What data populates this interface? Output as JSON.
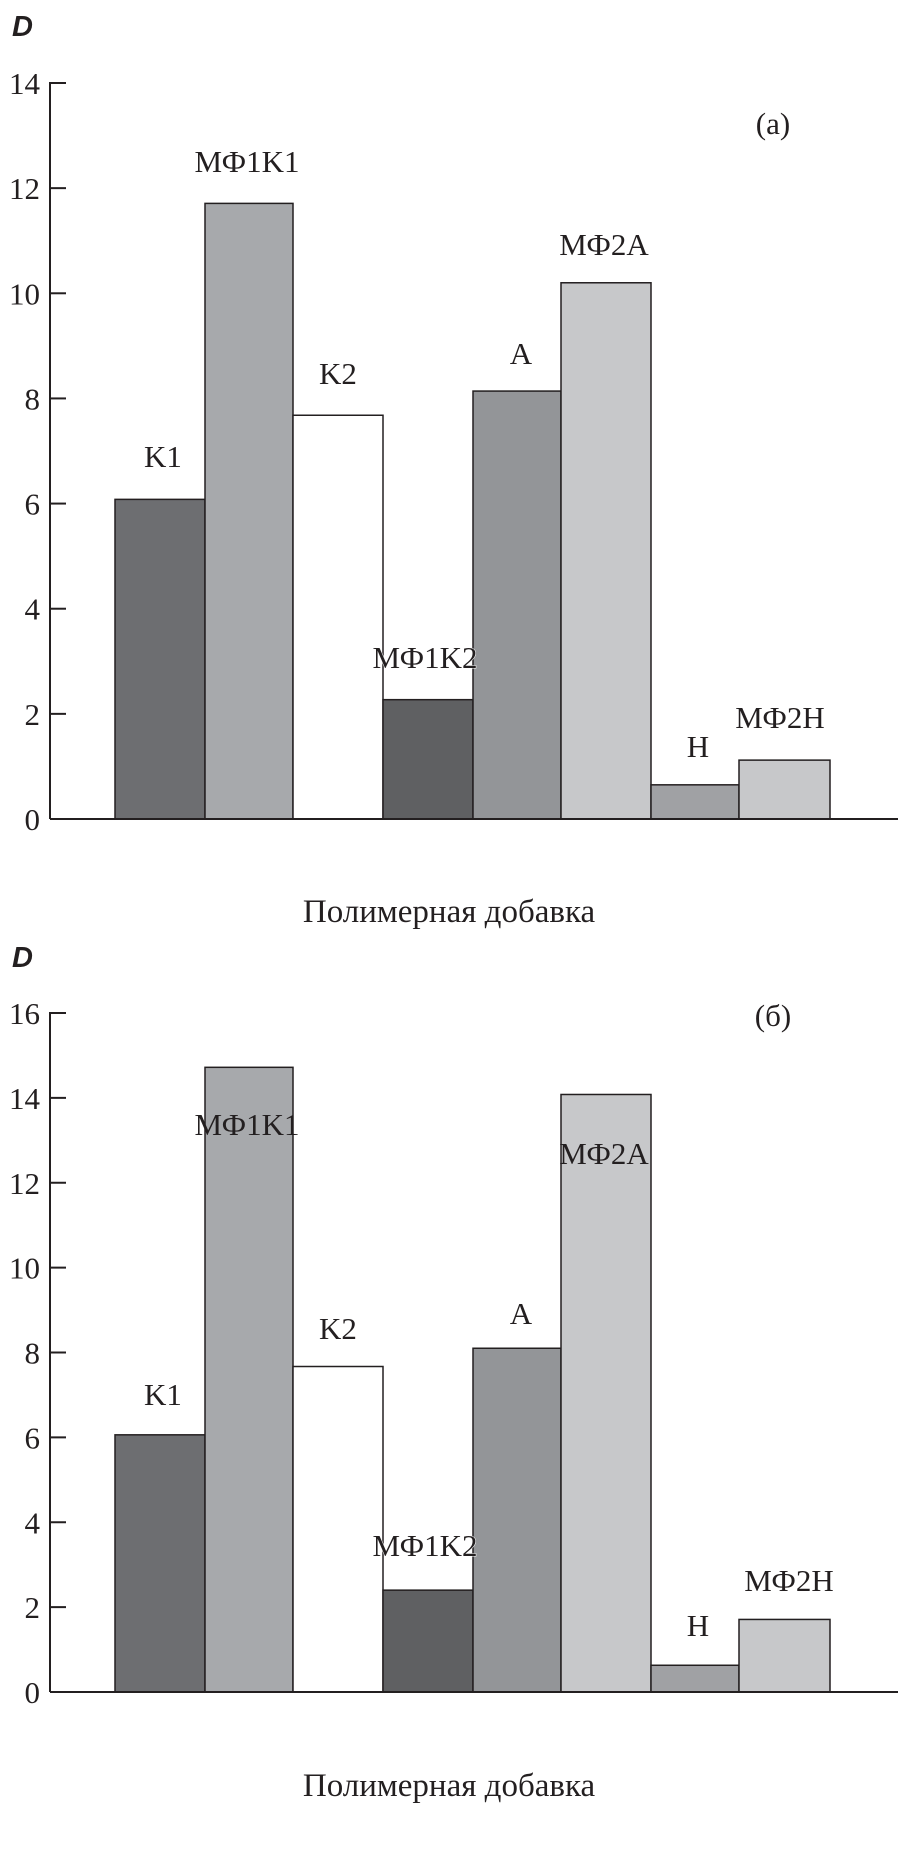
{
  "chart_data": [
    {
      "type": "bar",
      "panel_label": "(a)",
      "ylabel": "D",
      "xlabel": "Полимерная добавка",
      "ylim": [
        0,
        14
      ],
      "yticks": [
        0,
        2,
        4,
        6,
        8,
        10,
        12,
        14
      ],
      "grid": false,
      "categories": [
        "K1",
        "МФ1K1",
        "K2",
        "МФ1K2",
        "A",
        "МФ2A",
        "H",
        "МФ2H"
      ],
      "values": [
        6.08,
        11.71,
        7.68,
        2.27,
        8.14,
        10.2,
        0.65,
        1.12
      ],
      "colors": [
        "#6d6e71",
        "#a7a9ac",
        "#ffffff",
        "#5f6062",
        "#939598",
        "#c7c8ca",
        "#a0a1a4",
        "#c7c8ca"
      ]
    },
    {
      "type": "bar",
      "panel_label": "(б)",
      "ylabel": "D",
      "xlabel": "Полимерная добавка",
      "ylim": [
        0,
        16
      ],
      "yticks": [
        0,
        2,
        4,
        6,
        8,
        10,
        12,
        14,
        16
      ],
      "grid": false,
      "categories": [
        "K1",
        "МФ1K1",
        "K2",
        "МФ1K2",
        "A",
        "МФ2A",
        "H",
        "МФ2H"
      ],
      "values": [
        6.06,
        14.72,
        7.67,
        2.4,
        8.1,
        14.08,
        0.63,
        1.71
      ],
      "colors": [
        "#6d6e71",
        "#a7a9ac",
        "#ffffff",
        "#5f6062",
        "#939598",
        "#c7c8ca",
        "#a0a1a4",
        "#c7c8ca"
      ]
    }
  ]
}
